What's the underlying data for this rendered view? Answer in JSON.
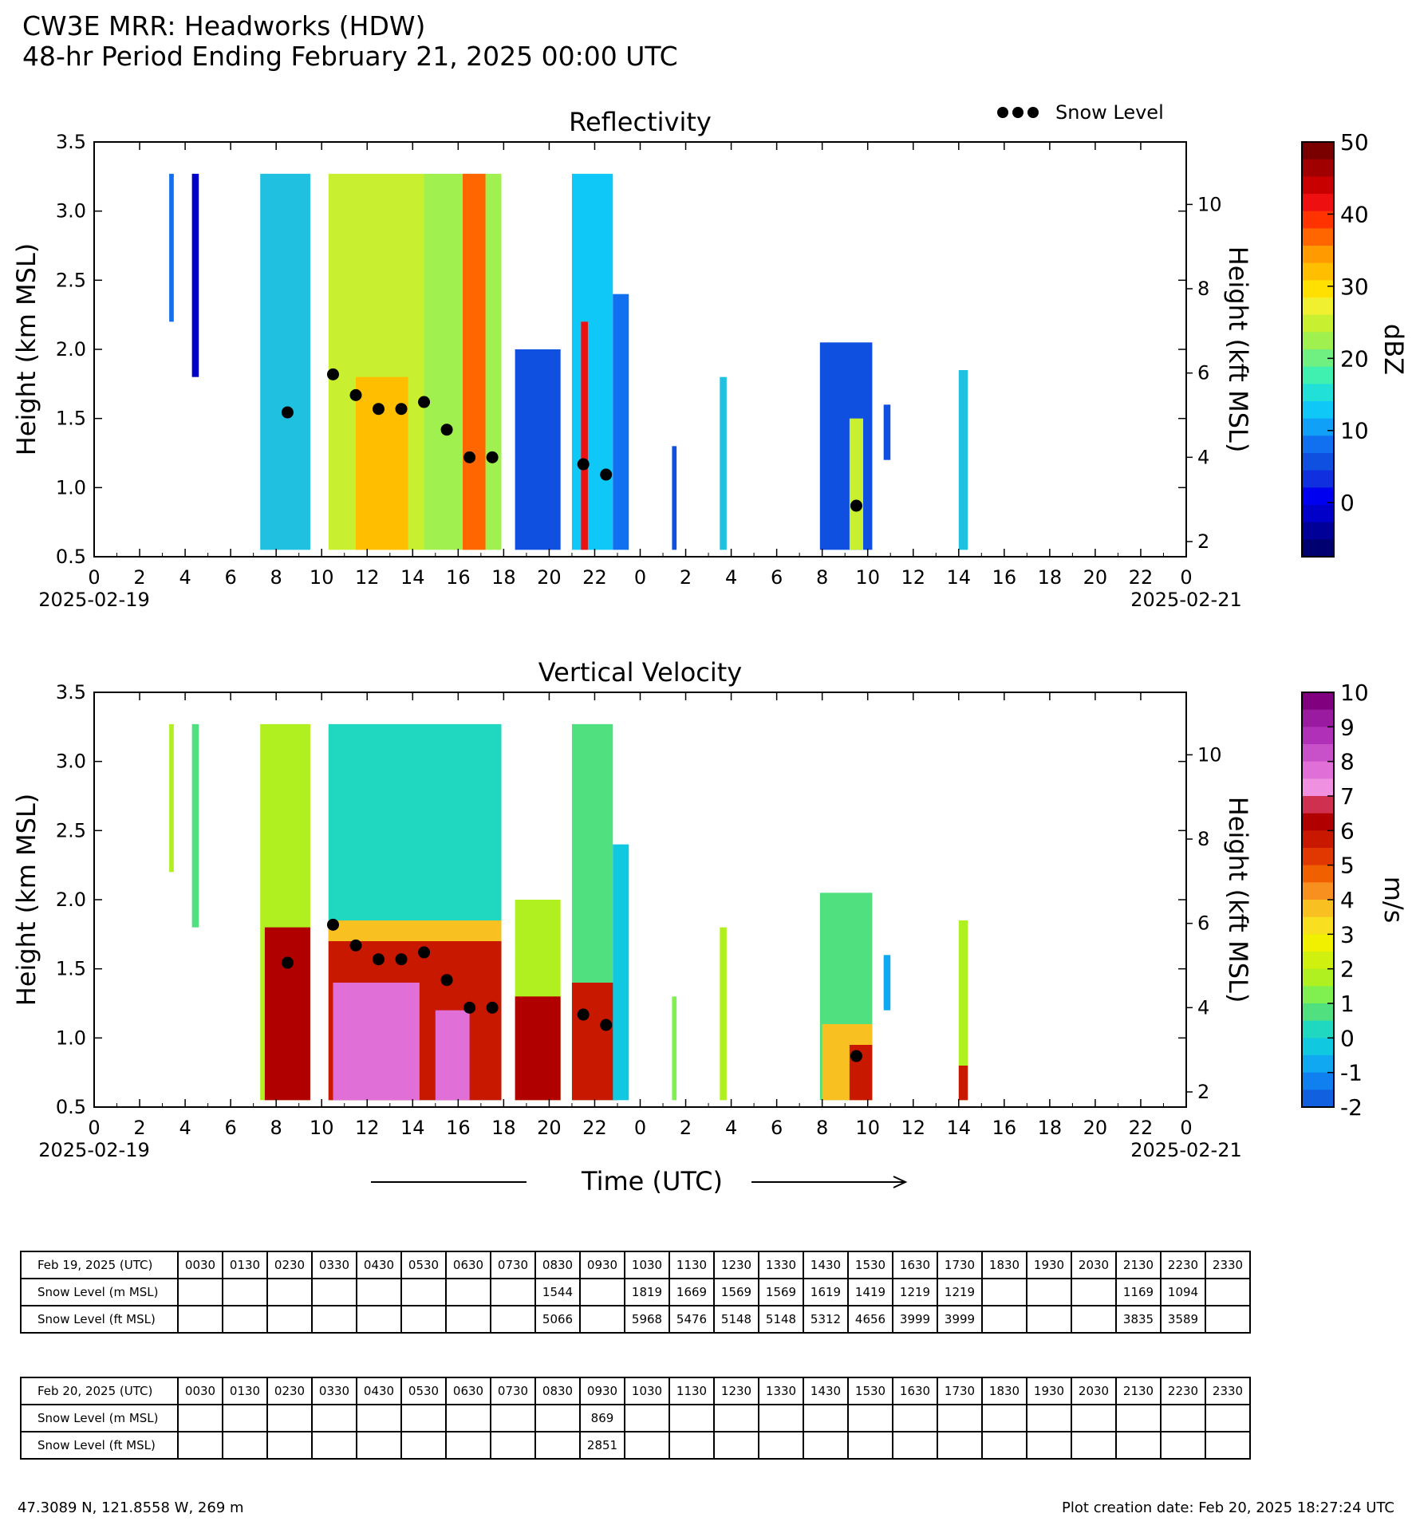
{
  "header": {
    "title_line1": "CW3E MRR: Headworks (HDW)",
    "title_line2": "48-hr Period Ending February 21, 2025 00:00 UTC"
  },
  "footer": {
    "location": "47.3089 N, 121.8558 W, 269 m",
    "creation_date": "Plot creation date: Feb 20, 2025 18:27:24 UTC"
  },
  "chart_data": [
    {
      "type": "heatmap",
      "title": "Reflectivity",
      "ylabel": "Height (km MSL)",
      "ylabel_right": "Height (kft MSL)",
      "xlabel": "",
      "ylim": [
        0.5,
        3.5
      ],
      "yticks": [
        "0.5",
        "1.0",
        "1.5",
        "2.0",
        "2.5",
        "3.0",
        "3.5"
      ],
      "right_ticks": [
        "2",
        "4",
        "6",
        "8",
        "10"
      ],
      "xticks": [
        "0",
        "2",
        "4",
        "6",
        "8",
        "10",
        "12",
        "14",
        "16",
        "18",
        "20",
        "22",
        "0",
        "2",
        "4",
        "6",
        "8",
        "10",
        "12",
        "14",
        "16",
        "18",
        "20",
        "22",
        "0"
      ],
      "date_start": "2025-02-19",
      "date_end": "2025-02-21",
      "legend": "Snow Level",
      "colorbar": {
        "label": "dBZ",
        "ticks": [
          "50",
          "40",
          "30",
          "20",
          "10",
          "0"
        ],
        "colors": [
          "#7a0000",
          "#a00000",
          "#c80000",
          "#ee1010",
          "#ff3300",
          "#ff6600",
          "#ff9a00",
          "#ffbe00",
          "#ffe000",
          "#f0f030",
          "#c8f030",
          "#a0f050",
          "#70f080",
          "#40f0b0",
          "#20e0d8",
          "#10c8f8",
          "#10a0f8",
          "#1070f0",
          "#1050e0",
          "#1030e0",
          "#0000f0",
          "#0000c8",
          "#000098",
          "#000070"
        ]
      },
      "x_unit": "hours since 2025-02-19 00:00 UTC",
      "snow_level_km": [
        [
          8.5,
          1.544
        ],
        [
          10.5,
          1.819
        ],
        [
          11.5,
          1.669
        ],
        [
          12.5,
          1.569
        ],
        [
          13.5,
          1.569
        ],
        [
          14.5,
          1.619
        ],
        [
          15.5,
          1.419
        ],
        [
          16.5,
          1.219
        ],
        [
          17.5,
          1.219
        ],
        [
          21.5,
          1.169
        ],
        [
          22.5,
          1.094
        ],
        [
          33.5,
          0.869
        ]
      ],
      "echo_segments": [
        {
          "x0": 3.3,
          "x1": 3.5,
          "top": 3.27,
          "bottom": 2.2,
          "color": "#1070f0"
        },
        {
          "x0": 4.3,
          "x1": 4.6,
          "top": 3.27,
          "bottom": 1.8,
          "color": "#0000c8"
        },
        {
          "x0": 7.3,
          "x1": 9.5,
          "top": 3.27,
          "bottom": 0.55,
          "color": "#20c0e0"
        },
        {
          "x0": 10.3,
          "x1": 14.5,
          "top": 3.27,
          "bottom": 0.55,
          "color": "#c8f030"
        },
        {
          "x0": 11.5,
          "x1": 13.8,
          "top": 1.8,
          "bottom": 0.55,
          "color": "#ffbe00"
        },
        {
          "x0": 14.5,
          "x1": 17.9,
          "top": 3.27,
          "bottom": 0.55,
          "color": "#a0f050"
        },
        {
          "x0": 16.2,
          "x1": 17.2,
          "top": 3.27,
          "bottom": 0.55,
          "color": "#ff6600"
        },
        {
          "x0": 18.5,
          "x1": 20.5,
          "top": 2.0,
          "bottom": 0.55,
          "color": "#1050e0"
        },
        {
          "x0": 21.0,
          "x1": 22.8,
          "top": 3.27,
          "bottom": 0.55,
          "color": "#10c8f8"
        },
        {
          "x0": 21.4,
          "x1": 21.7,
          "top": 2.2,
          "bottom": 0.55,
          "color": "#ee1010"
        },
        {
          "x0": 22.8,
          "x1": 23.5,
          "top": 2.4,
          "bottom": 0.55,
          "color": "#1070f0"
        },
        {
          "x0": 25.4,
          "x1": 25.6,
          "top": 1.3,
          "bottom": 0.55,
          "color": "#1050e0"
        },
        {
          "x0": 27.5,
          "x1": 27.8,
          "top": 1.8,
          "bottom": 0.55,
          "color": "#20c0e0"
        },
        {
          "x0": 31.9,
          "x1": 34.2,
          "top": 2.05,
          "bottom": 0.55,
          "color": "#1050e0"
        },
        {
          "x0": 33.2,
          "x1": 33.8,
          "top": 1.5,
          "bottom": 0.55,
          "color": "#c8f030"
        },
        {
          "x0": 34.7,
          "x1": 35.0,
          "top": 1.6,
          "bottom": 1.2,
          "color": "#1050e0"
        },
        {
          "x0": 38.0,
          "x1": 38.4,
          "top": 1.85,
          "bottom": 0.55,
          "color": "#20c0e0"
        }
      ]
    },
    {
      "type": "heatmap",
      "title": "Vertical Velocity",
      "ylabel": "Height (km MSL)",
      "ylabel_right": "Height (kft MSL)",
      "xlabel": "Time (UTC)",
      "ylim": [
        0.5,
        3.5
      ],
      "yticks": [
        "0.5",
        "1.0",
        "1.5",
        "2.0",
        "2.5",
        "3.0",
        "3.5"
      ],
      "right_ticks": [
        "2",
        "4",
        "6",
        "8",
        "10"
      ],
      "xticks": [
        "0",
        "2",
        "4",
        "6",
        "8",
        "10",
        "12",
        "14",
        "16",
        "18",
        "20",
        "22",
        "0",
        "2",
        "4",
        "6",
        "8",
        "10",
        "12",
        "14",
        "16",
        "18",
        "20",
        "22",
        "0"
      ],
      "date_start": "2025-02-19",
      "date_end": "2025-02-21",
      "colorbar": {
        "label": "m/s",
        "ticks": [
          "10",
          "9",
          "8",
          "7",
          "6",
          "5",
          "4",
          "3",
          "2",
          "1",
          "0",
          "-1",
          "-2"
        ],
        "colors": [
          "#800080",
          "#9a1aa0",
          "#b030b8",
          "#c850c8",
          "#e070d8",
          "#f090e0",
          "#d03050",
          "#b00000",
          "#c81800",
          "#e03800",
          "#f06000",
          "#f89020",
          "#f8c020",
          "#f8e020",
          "#f0f000",
          "#d0f010",
          "#b0f020",
          "#80f050",
          "#50e080",
          "#20d8c0",
          "#10c8e0",
          "#10a8f0",
          "#1080f0",
          "#1060e0"
        ]
      },
      "x_unit": "hours since 2025-02-19 00:00 UTC",
      "snow_level_km": [
        [
          8.5,
          1.544
        ],
        [
          10.5,
          1.819
        ],
        [
          11.5,
          1.669
        ],
        [
          12.5,
          1.569
        ],
        [
          13.5,
          1.569
        ],
        [
          14.5,
          1.619
        ],
        [
          15.5,
          1.419
        ],
        [
          16.5,
          1.219
        ],
        [
          17.5,
          1.219
        ],
        [
          21.5,
          1.169
        ],
        [
          22.5,
          1.094
        ],
        [
          33.5,
          0.869
        ]
      ],
      "echo_segments": [
        {
          "x0": 3.3,
          "x1": 3.5,
          "top": 3.27,
          "bottom": 2.2,
          "color": "#b0f020"
        },
        {
          "x0": 4.3,
          "x1": 4.6,
          "top": 3.27,
          "bottom": 1.8,
          "color": "#50e080"
        },
        {
          "x0": 7.3,
          "x1": 9.5,
          "top": 3.27,
          "bottom": 0.55,
          "color": "#b0f020"
        },
        {
          "x0": 7.5,
          "x1": 9.5,
          "top": 1.8,
          "bottom": 0.55,
          "color": "#b00000"
        },
        {
          "x0": 10.3,
          "x1": 17.9,
          "top": 3.27,
          "bottom": 0.55,
          "color": "#20d8c0"
        },
        {
          "x0": 10.3,
          "x1": 17.9,
          "top": 1.85,
          "bottom": 1.6,
          "color": "#f8c020"
        },
        {
          "x0": 10.3,
          "x1": 17.9,
          "top": 1.7,
          "bottom": 0.55,
          "color": "#c81800"
        },
        {
          "x0": 10.5,
          "x1": 14.3,
          "top": 1.4,
          "bottom": 0.55,
          "color": "#e070d8"
        },
        {
          "x0": 15.0,
          "x1": 16.5,
          "top": 1.2,
          "bottom": 0.55,
          "color": "#e070d8"
        },
        {
          "x0": 18.5,
          "x1": 20.5,
          "top": 2.0,
          "bottom": 0.55,
          "color": "#b0f020"
        },
        {
          "x0": 18.5,
          "x1": 20.5,
          "top": 1.3,
          "bottom": 0.55,
          "color": "#b00000"
        },
        {
          "x0": 21.0,
          "x1": 22.8,
          "top": 3.27,
          "bottom": 0.55,
          "color": "#50e080"
        },
        {
          "x0": 21.0,
          "x1": 23.0,
          "top": 1.4,
          "bottom": 0.55,
          "color": "#c81800"
        },
        {
          "x0": 22.8,
          "x1": 23.5,
          "top": 2.4,
          "bottom": 0.55,
          "color": "#10c8e0"
        },
        {
          "x0": 25.4,
          "x1": 25.6,
          "top": 1.3,
          "bottom": 0.55,
          "color": "#80f050"
        },
        {
          "x0": 27.5,
          "x1": 27.8,
          "top": 1.8,
          "bottom": 0.55,
          "color": "#b0f020"
        },
        {
          "x0": 31.9,
          "x1": 34.2,
          "top": 2.05,
          "bottom": 0.55,
          "color": "#50e080"
        },
        {
          "x0": 32.0,
          "x1": 34.2,
          "top": 1.1,
          "bottom": 0.55,
          "color": "#f8c020"
        },
        {
          "x0": 33.2,
          "x1": 34.2,
          "top": 0.95,
          "bottom": 0.55,
          "color": "#c81800"
        },
        {
          "x0": 34.7,
          "x1": 35.0,
          "top": 1.6,
          "bottom": 1.2,
          "color": "#10a8f0"
        },
        {
          "x0": 38.0,
          "x1": 38.4,
          "top": 1.85,
          "bottom": 0.55,
          "color": "#b0f020"
        },
        {
          "x0": 38.0,
          "x1": 38.4,
          "top": 0.8,
          "bottom": 0.55,
          "color": "#c81800"
        }
      ]
    }
  ],
  "tables": [
    {
      "date_label": "Feb 19, 2025 (UTC)",
      "times": [
        "0030",
        "0130",
        "0230",
        "0330",
        "0430",
        "0530",
        "0630",
        "0730",
        "0830",
        "0930",
        "1030",
        "1130",
        "1230",
        "1330",
        "1430",
        "1530",
        "1630",
        "1730",
        "1830",
        "1930",
        "2030",
        "2130",
        "2230",
        "2330"
      ],
      "m_label": "Snow Level (m MSL)",
      "ft_label": "Snow Level (ft MSL)",
      "m_values": [
        "",
        "",
        "",
        "",
        "",
        "",
        "",
        "",
        "1544",
        "",
        "1819",
        "1669",
        "1569",
        "1569",
        "1619",
        "1419",
        "1219",
        "1219",
        "",
        "",
        "",
        "1169",
        "1094",
        ""
      ],
      "ft_values": [
        "",
        "",
        "",
        "",
        "",
        "",
        "",
        "",
        "5066",
        "",
        "5968",
        "5476",
        "5148",
        "5148",
        "5312",
        "4656",
        "3999",
        "3999",
        "",
        "",
        "",
        "3835",
        "3589",
        ""
      ]
    },
    {
      "date_label": "Feb 20, 2025 (UTC)",
      "times": [
        "0030",
        "0130",
        "0230",
        "0330",
        "0430",
        "0530",
        "0630",
        "0730",
        "0830",
        "0930",
        "1030",
        "1130",
        "1230",
        "1330",
        "1430",
        "1530",
        "1630",
        "1730",
        "1830",
        "1930",
        "2030",
        "2130",
        "2230",
        "2330"
      ],
      "m_label": "Snow Level (m MSL)",
      "ft_label": "Snow Level (ft MSL)",
      "m_values": [
        "",
        "",
        "",
        "",
        "",
        "",
        "",
        "",
        "",
        "869",
        "",
        "",
        "",
        "",
        "",
        "",
        "",
        "",
        "",
        "",
        "",
        "",
        "",
        ""
      ],
      "ft_values": [
        "",
        "",
        "",
        "",
        "",
        "",
        "",
        "",
        "",
        "2851",
        "",
        "",
        "",
        "",
        "",
        "",
        "",
        "",
        "",
        "",
        "",
        "",
        "",
        ""
      ]
    }
  ]
}
